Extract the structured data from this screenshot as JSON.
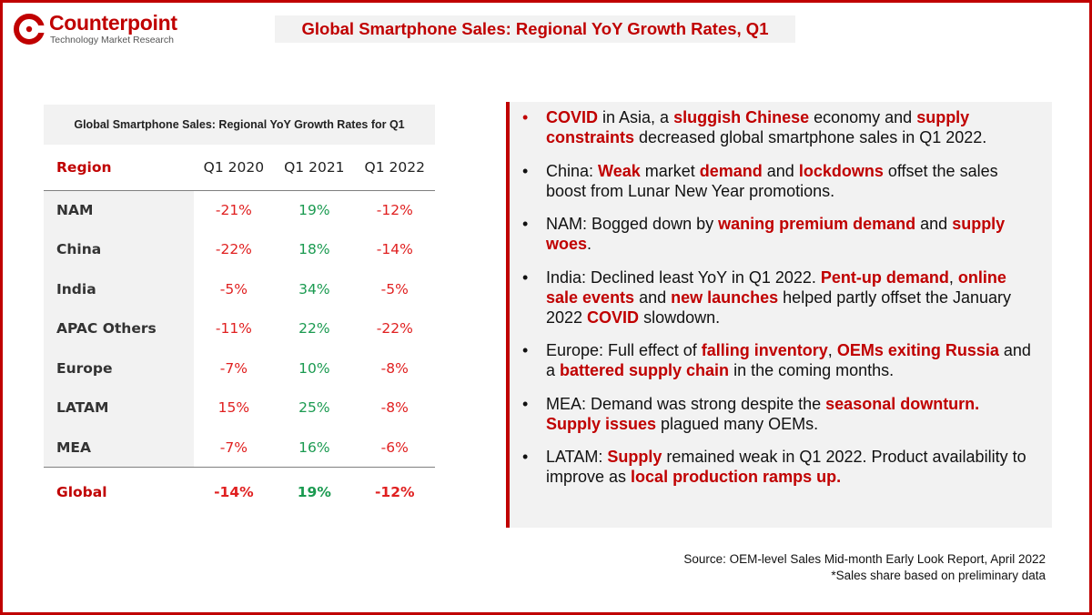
{
  "logo": {
    "name": "Counterpoint",
    "tagline": "Technology Market Research",
    "brand_color": "#c00000"
  },
  "title": "Global Smartphone Sales: Regional YoY Growth Rates, Q1",
  "table": {
    "caption": "Global Smartphone Sales: Regional YoY Growth Rates for Q1",
    "headers": [
      "Region",
      "Q1 2020",
      "Q1 2021",
      "Q1 2022"
    ],
    "rows": [
      {
        "region": "NAM",
        "q1_2020": "-21%",
        "q1_2021": "19%",
        "q1_2022": "-12%"
      },
      {
        "region": "China",
        "q1_2020": "-22%",
        "q1_2021": "18%",
        "q1_2022": "-14%"
      },
      {
        "region": "India",
        "q1_2020": "-5%",
        "q1_2021": "34%",
        "q1_2022": "-5%"
      },
      {
        "region": "APAC Others",
        "q1_2020": "-11%",
        "q1_2021": "22%",
        "q1_2022": "-22%"
      },
      {
        "region": "Europe",
        "q1_2020": "-7%",
        "q1_2021": "10%",
        "q1_2022": "-8%"
      },
      {
        "region": "LATAM",
        "q1_2020": "15%",
        "q1_2021": "25%",
        "q1_2022": "-8%"
      },
      {
        "region": "MEA",
        "q1_2020": "-7%",
        "q1_2021": "16%",
        "q1_2022": "-6%"
      }
    ],
    "global": {
      "region": "Global",
      "q1_2020": "-14%",
      "q1_2021": "19%",
      "q1_2022": "-12%"
    },
    "colors": {
      "negative": "#e02020",
      "positive": "#1a9a50",
      "accent": "#c00000"
    }
  },
  "bullets": {
    "b1": {
      "p1": "COVID",
      "p2": " in Asia, a ",
      "p3": "sluggish Chinese",
      "p4": " economy and ",
      "p5": "supply constraints",
      "p6": " decreased global smartphone sales in Q1 2022."
    },
    "b2": {
      "p1": "China: ",
      "p2": "Weak",
      "p3": " market ",
      "p4": "demand",
      "p5": " and ",
      "p6": "lockdowns",
      "p7": " offset the sales boost from Lunar New Year promotions."
    },
    "b3": {
      "p1": "NAM: Bogged down by ",
      "p2": "waning premium demand",
      "p3": " and ",
      "p4": "supply woes",
      "p5": "."
    },
    "b4": {
      "p1": "India: Declined least YoY in Q1 2022. ",
      "p2": "Pent-up demand",
      "p3": ", ",
      "p4": "online sale events",
      "p5": " and ",
      "p6": "new launches",
      "p7": " helped partly offset the January 2022 ",
      "p8": "COVID",
      "p9": " slowdown."
    },
    "b5": {
      "p1": "Europe: Full effect of ",
      "p2": "falling inventory",
      "p3": ", ",
      "p4": "OEMs exiting Russia",
      "p5": " and a ",
      "p6": "battered supply chain",
      "p7": " in the coming months."
    },
    "b6": {
      "p1": "MEA: Demand was strong despite the ",
      "p2": "seasonal downturn.",
      "p3": " ",
      "p4": "Supply issues",
      "p5": " plagued many OEMs."
    },
    "b7": {
      "p1": "LATAM: ",
      "p2": "Supply",
      "p3": " remained weak in Q1 2022. Product availability to improve as ",
      "p4": "local production ramps up."
    }
  },
  "bullet_symbol": "•",
  "source": {
    "line1": "Source: OEM-level Sales Mid-month Early Look Report, April 2022",
    "line2": "*Sales share based on preliminary data"
  }
}
